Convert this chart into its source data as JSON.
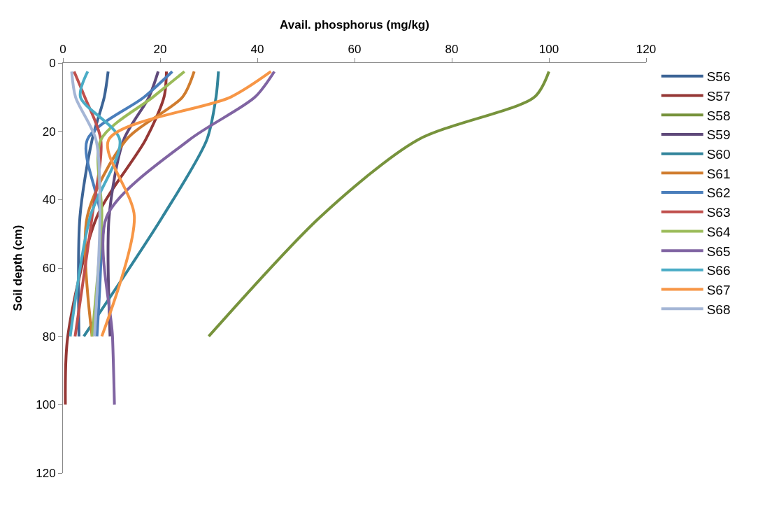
{
  "chart_data": {
    "type": "line",
    "xlabel": "Avail. phosphorus (mg/kg)",
    "ylabel": "Soil depth (cm)",
    "xlim": [
      0,
      120
    ],
    "xticks": [
      0,
      20,
      40,
      60,
      80,
      100,
      120
    ],
    "ylim": [
      120,
      0
    ],
    "yticks": [
      0,
      20,
      40,
      60,
      80,
      100,
      120
    ],
    "legend": "right",
    "marker": "none",
    "line_style": "solid",
    "series": [
      {
        "name": "S56",
        "color": "#3c6496",
        "x": [
          9.3,
          8.5,
          6,
          3.5,
          3.3
        ],
        "values": [
          2.5,
          10,
          22.5,
          45,
          80
        ]
      },
      {
        "name": "S57",
        "color": "#953735",
        "x": [
          21.3,
          20.8,
          17,
          7,
          1,
          0.5
        ],
        "values": [
          2.5,
          10,
          22.5,
          45,
          80,
          100
        ]
      },
      {
        "name": "S58",
        "color": "#77933c",
        "x": [
          100,
          97,
          73,
          53,
          30
        ],
        "values": [
          2.5,
          10,
          22.5,
          45,
          80
        ]
      },
      {
        "name": "S59",
        "color": "#5f497a",
        "x": [
          19.6,
          17.7,
          12.5,
          9.5,
          9.7
        ],
        "values": [
          2.5,
          10,
          22.5,
          45,
          80
        ]
      },
      {
        "name": "S60",
        "color": "#31849b",
        "x": [
          32,
          31.5,
          29.6,
          20.5,
          4.3
        ],
        "values": [
          2.5,
          10,
          22.5,
          45,
          80
        ]
      },
      {
        "name": "S61",
        "color": "#d07c2e",
        "x": [
          27,
          24.6,
          13,
          5,
          6
        ],
        "values": [
          2.5,
          10,
          22.5,
          45,
          80
        ]
      },
      {
        "name": "S62",
        "color": "#4a7ebb",
        "x": [
          22.5,
          16.7,
          5,
          7.8,
          7
        ],
        "values": [
          2.5,
          10,
          22.5,
          45,
          80
        ]
      },
      {
        "name": "S63",
        "color": "#c0504d",
        "x": [
          2.3,
          4.5,
          7.8,
          6,
          2.5
        ],
        "values": [
          2.5,
          10,
          22.5,
          45,
          80
        ]
      },
      {
        "name": "S64",
        "color": "#9bbb59",
        "x": [
          25,
          18.5,
          7.8,
          8,
          6
        ],
        "values": [
          2.5,
          10,
          22.5,
          45,
          80
        ]
      },
      {
        "name": "S65",
        "color": "#8064a2",
        "x": [
          43.5,
          39.5,
          26,
          9,
          10.2,
          10.6
        ],
        "values": [
          2.5,
          10,
          22.5,
          45,
          80,
          100
        ]
      },
      {
        "name": "S66",
        "color": "#4bacc6",
        "x": [
          5.1,
          3.6,
          11.7,
          5.6,
          1.5
        ],
        "values": [
          2.5,
          10,
          22.5,
          45,
          80
        ]
      },
      {
        "name": "S67",
        "color": "#f79646",
        "x": [
          42.8,
          34.5,
          9.4,
          14.7,
          8
        ],
        "values": [
          2.5,
          10,
          22.5,
          45,
          80
        ]
      },
      {
        "name": "S68",
        "color": "#a5b6d6",
        "x": [
          1.8,
          2.6,
          6.8,
          7.6,
          6.5
        ],
        "values": [
          2.5,
          10,
          22.5,
          45,
          80
        ]
      }
    ]
  }
}
